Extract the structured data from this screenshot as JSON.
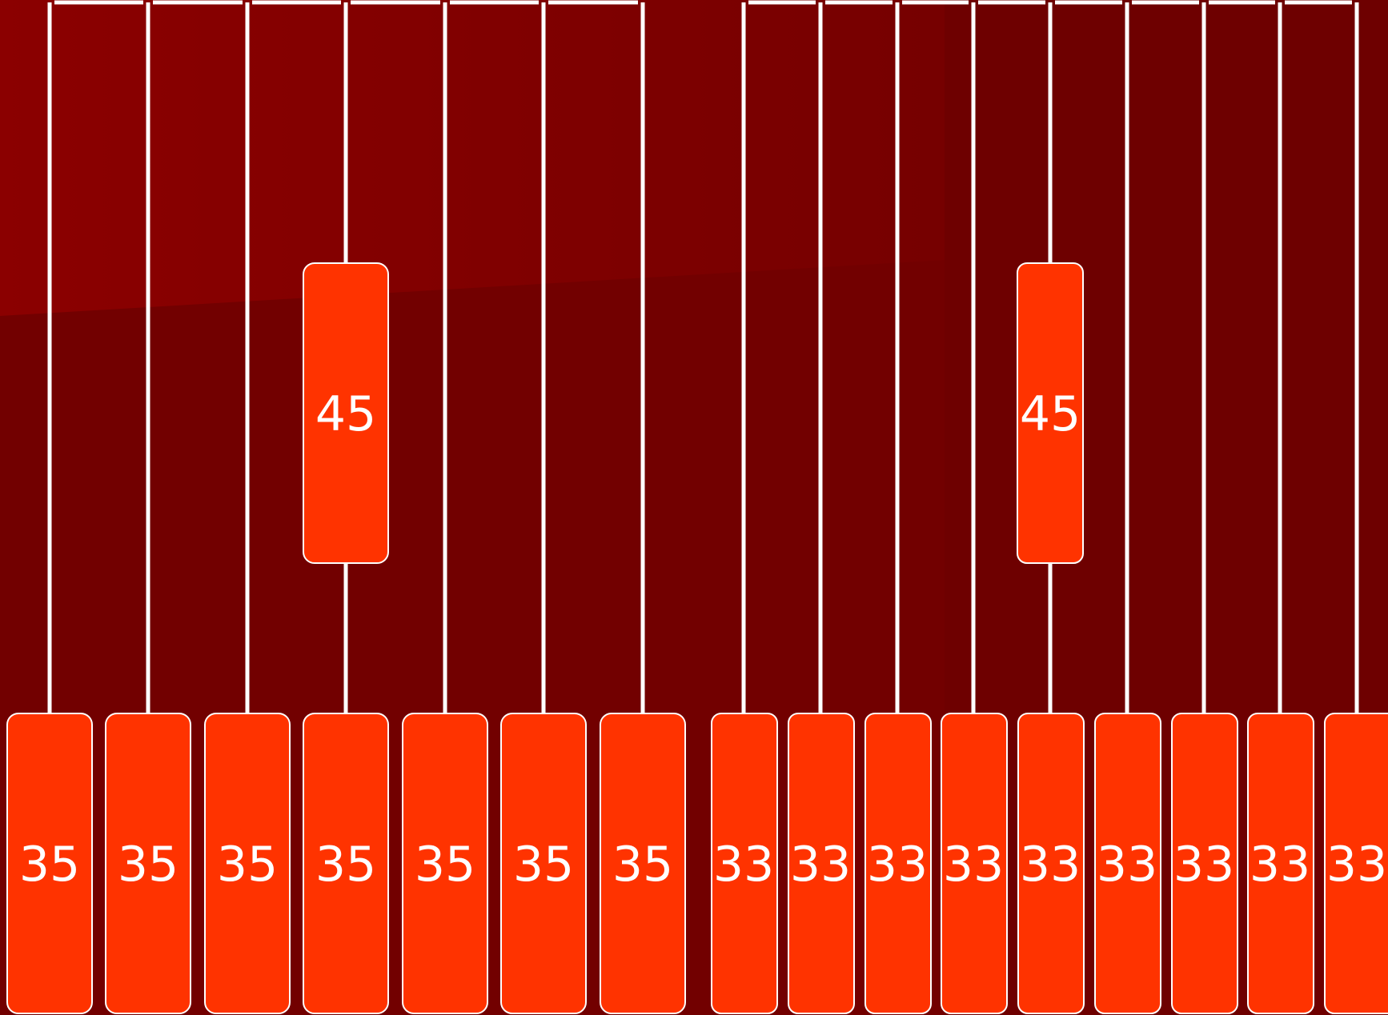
{
  "colors": {
    "background_top": "#8b0000",
    "background_bottom": "#720000",
    "strap": "#ffffff",
    "chip_fill": "#ff3300",
    "chip_border": "#ffffff",
    "label": "#ffffff"
  },
  "upper_chips": [
    {
      "label": "45"
    },
    {
      "label": "45"
    }
  ],
  "lower_chips": [
    {
      "label": "35"
    },
    {
      "label": "35"
    },
    {
      "label": "35"
    },
    {
      "label": "35"
    },
    {
      "label": "35"
    },
    {
      "label": "35"
    },
    {
      "label": "35"
    },
    {
      "label": "33"
    },
    {
      "label": "33"
    },
    {
      "label": "33"
    },
    {
      "label": "33"
    },
    {
      "label": "33"
    },
    {
      "label": "33"
    },
    {
      "label": "33"
    },
    {
      "label": "33"
    },
    {
      "label": "33"
    }
  ]
}
